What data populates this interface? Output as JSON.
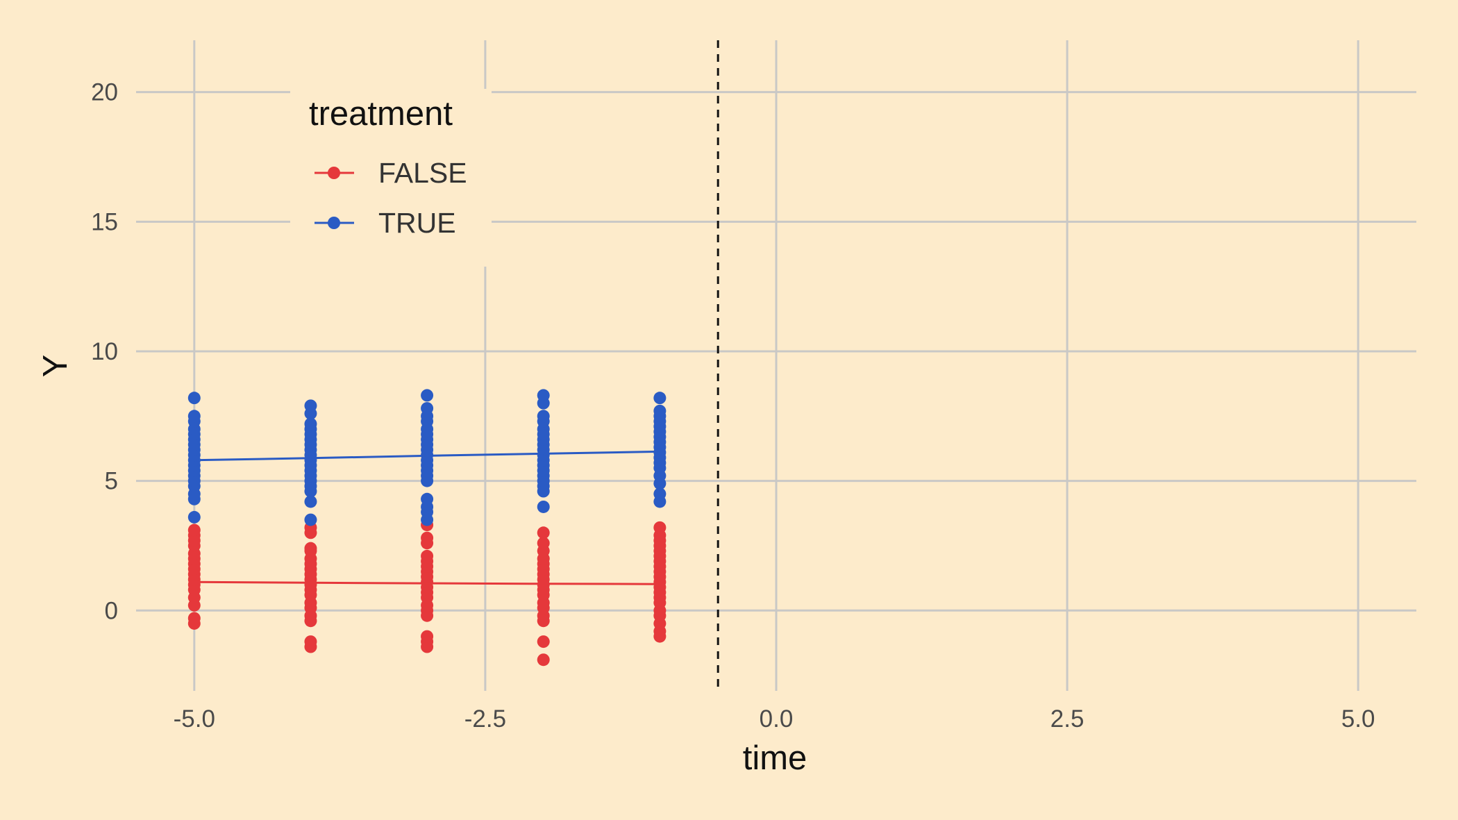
{
  "chart_data": {
    "type": "scatter",
    "xlabel": "time",
    "ylabel": "Y",
    "xlim": [
      -5.5,
      5.5
    ],
    "ylim": [
      -3.1,
      22
    ],
    "x_ticks": [
      -5.0,
      -2.5,
      0.0,
      2.5,
      5.0
    ],
    "x_tick_labels": [
      "-5.0",
      "-2.5",
      "0.0",
      "2.5",
      "5.0"
    ],
    "y_ticks": [
      0,
      5,
      10,
      15,
      20
    ],
    "y_tick_labels": [
      "0",
      "5",
      "10",
      "15",
      "20"
    ],
    "grid": true,
    "legend_position": "top-left",
    "legend_title": "treatment",
    "vline": {
      "x": -0.5,
      "style": "dashed",
      "color": "#111111"
    },
    "series": [
      {
        "name": "FALSE",
        "color": "#E5383B",
        "x": [
          -5,
          -4,
          -3,
          -2,
          -1
        ],
        "line_y": [
          1.1,
          1.07,
          1.05,
          1.03,
          1.02
        ],
        "points": [
          [
            -5,
            -0.5
          ],
          [
            -5,
            -0.3
          ],
          [
            -5,
            0.2
          ],
          [
            -5,
            0.5
          ],
          [
            -5,
            0.8
          ],
          [
            -5,
            1.0
          ],
          [
            -5,
            1.2
          ],
          [
            -5,
            1.4
          ],
          [
            -5,
            1.6
          ],
          [
            -5,
            1.8
          ],
          [
            -5,
            2.0
          ],
          [
            -5,
            2.2
          ],
          [
            -5,
            2.5
          ],
          [
            -5,
            2.7
          ],
          [
            -5,
            2.9
          ],
          [
            -5,
            3.1
          ],
          [
            -4,
            -1.4
          ],
          [
            -4,
            -1.2
          ],
          [
            -4,
            -0.4
          ],
          [
            -4,
            -0.2
          ],
          [
            -4,
            0.1
          ],
          [
            -4,
            0.3
          ],
          [
            -4,
            0.6
          ],
          [
            -4,
            0.8
          ],
          [
            -4,
            1.0
          ],
          [
            -4,
            1.2
          ],
          [
            -4,
            1.4
          ],
          [
            -4,
            1.6
          ],
          [
            -4,
            1.8
          ],
          [
            -4,
            2.0
          ],
          [
            -4,
            2.3
          ],
          [
            -4,
            2.4
          ],
          [
            -4,
            3.0
          ],
          [
            -4,
            3.2
          ],
          [
            -3,
            -1.4
          ],
          [
            -3,
            -1.2
          ],
          [
            -3,
            -1.0
          ],
          [
            -3,
            -0.2
          ],
          [
            -3,
            0.0
          ],
          [
            -3,
            0.2
          ],
          [
            -3,
            0.5
          ],
          [
            -3,
            0.7
          ],
          [
            -3,
            0.9
          ],
          [
            -3,
            1.1
          ],
          [
            -3,
            1.3
          ],
          [
            -3,
            1.5
          ],
          [
            -3,
            1.7
          ],
          [
            -3,
            1.9
          ],
          [
            -3,
            2.1
          ],
          [
            -3,
            2.6
          ],
          [
            -3,
            2.8
          ],
          [
            -3,
            3.3
          ],
          [
            -2,
            -1.9
          ],
          [
            -2,
            -1.2
          ],
          [
            -2,
            -0.4
          ],
          [
            -2,
            -0.2
          ],
          [
            -2,
            0.1
          ],
          [
            -2,
            0.3
          ],
          [
            -2,
            0.6
          ],
          [
            -2,
            0.8
          ],
          [
            -2,
            1.0
          ],
          [
            -2,
            1.2
          ],
          [
            -2,
            1.4
          ],
          [
            -2,
            1.6
          ],
          [
            -2,
            1.8
          ],
          [
            -2,
            2.0
          ],
          [
            -2,
            2.3
          ],
          [
            -2,
            2.6
          ],
          [
            -2,
            3.0
          ],
          [
            -1,
            -1.0
          ],
          [
            -1,
            -0.8
          ],
          [
            -1,
            -0.5
          ],
          [
            -1,
            -0.2
          ],
          [
            -1,
            0.0
          ],
          [
            -1,
            0.3
          ],
          [
            -1,
            0.5
          ],
          [
            -1,
            0.7
          ],
          [
            -1,
            0.9
          ],
          [
            -1,
            1.1
          ],
          [
            -1,
            1.3
          ],
          [
            -1,
            1.5
          ],
          [
            -1,
            1.7
          ],
          [
            -1,
            1.9
          ],
          [
            -1,
            2.1
          ],
          [
            -1,
            2.3
          ],
          [
            -1,
            2.5
          ],
          [
            -1,
            2.7
          ],
          [
            -1,
            2.9
          ],
          [
            -1,
            3.2
          ]
        ]
      },
      {
        "name": "TRUE",
        "color": "#2A5BC4",
        "x": [
          -5,
          -4,
          -3,
          -2,
          -1
        ],
        "line_y": [
          5.8,
          5.88,
          5.97,
          6.05,
          6.13
        ],
        "points": [
          [
            -5,
            3.6
          ],
          [
            -5,
            4.3
          ],
          [
            -5,
            4.5
          ],
          [
            -5,
            4.8
          ],
          [
            -5,
            5.0
          ],
          [
            -5,
            5.2
          ],
          [
            -5,
            5.4
          ],
          [
            -5,
            5.6
          ],
          [
            -5,
            5.8
          ],
          [
            -5,
            6.0
          ],
          [
            -5,
            6.2
          ],
          [
            -5,
            6.4
          ],
          [
            -5,
            6.6
          ],
          [
            -5,
            6.8
          ],
          [
            -5,
            7.0
          ],
          [
            -5,
            7.3
          ],
          [
            -5,
            7.5
          ],
          [
            -5,
            8.2
          ],
          [
            -4,
            3.5
          ],
          [
            -4,
            4.2
          ],
          [
            -4,
            4.6
          ],
          [
            -4,
            4.8
          ],
          [
            -4,
            5.0
          ],
          [
            -4,
            5.2
          ],
          [
            -4,
            5.4
          ],
          [
            -4,
            5.6
          ],
          [
            -4,
            5.8
          ],
          [
            -4,
            6.0
          ],
          [
            -4,
            6.2
          ],
          [
            -4,
            6.4
          ],
          [
            -4,
            6.6
          ],
          [
            -4,
            6.8
          ],
          [
            -4,
            7.0
          ],
          [
            -4,
            7.2
          ],
          [
            -4,
            7.6
          ],
          [
            -4,
            7.9
          ],
          [
            -3,
            3.5
          ],
          [
            -3,
            3.8
          ],
          [
            -3,
            4.0
          ],
          [
            -3,
            4.3
          ],
          [
            -3,
            5.0
          ],
          [
            -3,
            5.2
          ],
          [
            -3,
            5.4
          ],
          [
            -3,
            5.6
          ],
          [
            -3,
            5.8
          ],
          [
            -3,
            6.0
          ],
          [
            -3,
            6.2
          ],
          [
            -3,
            6.4
          ],
          [
            -3,
            6.6
          ],
          [
            -3,
            6.8
          ],
          [
            -3,
            7.0
          ],
          [
            -3,
            7.3
          ],
          [
            -3,
            7.5
          ],
          [
            -3,
            7.8
          ],
          [
            -3,
            8.3
          ],
          [
            -2,
            4.0
          ],
          [
            -2,
            4.6
          ],
          [
            -2,
            4.8
          ],
          [
            -2,
            5.0
          ],
          [
            -2,
            5.2
          ],
          [
            -2,
            5.4
          ],
          [
            -2,
            5.6
          ],
          [
            -2,
            5.8
          ],
          [
            -2,
            6.0
          ],
          [
            -2,
            6.2
          ],
          [
            -2,
            6.4
          ],
          [
            -2,
            6.6
          ],
          [
            -2,
            6.8
          ],
          [
            -2,
            7.0
          ],
          [
            -2,
            7.3
          ],
          [
            -2,
            7.5
          ],
          [
            -2,
            8.0
          ],
          [
            -2,
            8.3
          ],
          [
            -1,
            4.2
          ],
          [
            -1,
            4.5
          ],
          [
            -1,
            4.9
          ],
          [
            -1,
            5.2
          ],
          [
            -1,
            5.5
          ],
          [
            -1,
            5.7
          ],
          [
            -1,
            5.9
          ],
          [
            -1,
            6.1
          ],
          [
            -1,
            6.3
          ],
          [
            -1,
            6.5
          ],
          [
            -1,
            6.7
          ],
          [
            -1,
            6.9
          ],
          [
            -1,
            7.1
          ],
          [
            -1,
            7.3
          ],
          [
            -1,
            7.5
          ],
          [
            -1,
            7.7
          ],
          [
            -1,
            8.2
          ]
        ]
      }
    ]
  }
}
